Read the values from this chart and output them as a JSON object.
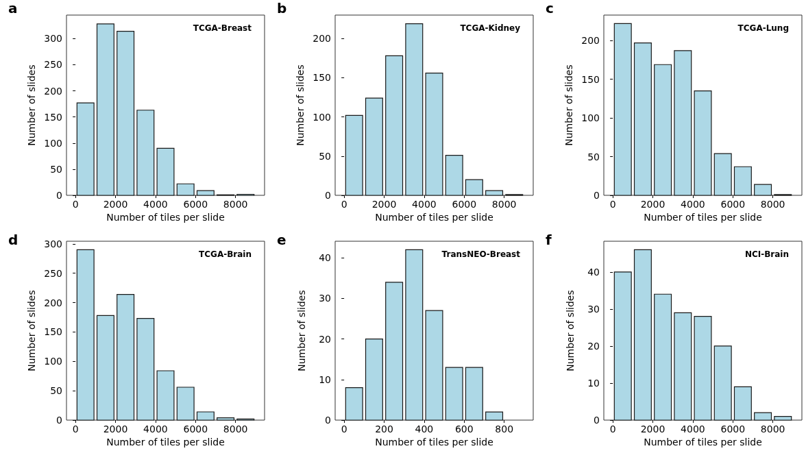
{
  "chart_data": [
    {
      "type": "histogram",
      "title": "TCGA-Breast",
      "annotations": [
        "a"
      ],
      "xlabel": "Number of tiles per slide",
      "ylabel": "Number of slides",
      "bins": [
        0,
        1000,
        2000,
        3000,
        4000,
        5000,
        6000,
        7000,
        8000,
        9000
      ],
      "values": [
        177,
        328,
        314,
        163,
        90,
        22,
        9,
        1,
        2
      ],
      "color": "#add8e6",
      "xlim": [
        -450,
        9450
      ],
      "xticks": [
        0,
        2000,
        4000,
        6000,
        8000
      ],
      "ylim": [
        0,
        345
      ],
      "yticks": [
        0,
        50,
        100,
        150,
        200,
        250,
        300
      ],
      "grid": false
    },
    {
      "type": "histogram",
      "title": "TCGA-Kidney",
      "annotations": [
        "b"
      ],
      "xlabel": "Number of tiles per slide",
      "ylabel": "Number of slides",
      "bins": [
        0,
        1000,
        2000,
        3000,
        4000,
        5000,
        6000,
        7000,
        8000,
        9000
      ],
      "values": [
        102,
        124,
        178,
        219,
        156,
        51,
        20,
        6,
        1
      ],
      "color": "#add8e6",
      "xlim": [
        -450,
        9450
      ],
      "xticks": [
        0,
        2000,
        4000,
        6000,
        8000
      ],
      "ylim": [
        0,
        230
      ],
      "yticks": [
        0,
        50,
        100,
        150,
        200
      ],
      "grid": false
    },
    {
      "type": "histogram",
      "title": "TCGA-Lung",
      "annotations": [
        "c"
      ],
      "xlabel": "Number of tiles per slide",
      "ylabel": "Number of slides",
      "bins": [
        0,
        1000,
        2000,
        3000,
        4000,
        5000,
        6000,
        7000,
        8000,
        9000
      ],
      "values": [
        222,
        197,
        169,
        187,
        135,
        54,
        37,
        14,
        1
      ],
      "color": "#add8e6",
      "xlim": [
        -450,
        9450
      ],
      "xticks": [
        0,
        2000,
        4000,
        6000,
        8000
      ],
      "ylim": [
        0,
        233
      ],
      "yticks": [
        0,
        50,
        100,
        150,
        200
      ],
      "grid": false
    },
    {
      "type": "histogram",
      "title": "TCGA-Brain",
      "annotations": [
        "d"
      ],
      "xlabel": "Number of tiles per slide",
      "ylabel": "Number of slides",
      "bins": [
        0,
        1000,
        2000,
        3000,
        4000,
        5000,
        6000,
        7000,
        8000,
        9000
      ],
      "values": [
        290,
        178,
        214,
        173,
        84,
        56,
        14,
        4,
        2
      ],
      "color": "#add8e6",
      "xlim": [
        -450,
        9450
      ],
      "xticks": [
        0,
        2000,
        4000,
        6000,
        8000
      ],
      "ylim": [
        0,
        304.5
      ],
      "yticks": [
        0,
        50,
        100,
        150,
        200,
        250,
        300
      ],
      "grid": false
    },
    {
      "type": "histogram",
      "title": "TransNEO-Breast",
      "annotations": [
        "e"
      ],
      "xlabel": "Number of tiles per slide",
      "ylabel": "Number of slides",
      "bins": [
        0,
        100,
        200,
        300,
        400,
        500,
        600,
        700,
        800,
        900
      ],
      "values": [
        8,
        20,
        34,
        42,
        27,
        13,
        13,
        2,
        0
      ],
      "color": "#add8e6",
      "xlim": [
        -45,
        945
      ],
      "xticks": [
        0,
        200,
        400,
        600,
        800
      ],
      "ylim": [
        0,
        44.1
      ],
      "yticks": [
        0,
        10,
        20,
        30,
        40
      ],
      "grid": false
    },
    {
      "type": "histogram",
      "title": "NCI-Brain",
      "annotations": [
        "f"
      ],
      "xlabel": "Number of tiles per slide",
      "ylabel": "Number of slides",
      "bins": [
        0,
        1000,
        2000,
        3000,
        4000,
        5000,
        6000,
        7000,
        8000,
        9000
      ],
      "values": [
        40,
        46,
        34,
        29,
        28,
        20,
        9,
        2,
        1
      ],
      "color": "#add8e6",
      "xlim": [
        -450,
        9450
      ],
      "xticks": [
        0,
        2000,
        4000,
        6000,
        8000
      ],
      "ylim": [
        0,
        48.3
      ],
      "yticks": [
        0,
        10,
        20,
        30,
        40
      ],
      "grid": false
    }
  ]
}
